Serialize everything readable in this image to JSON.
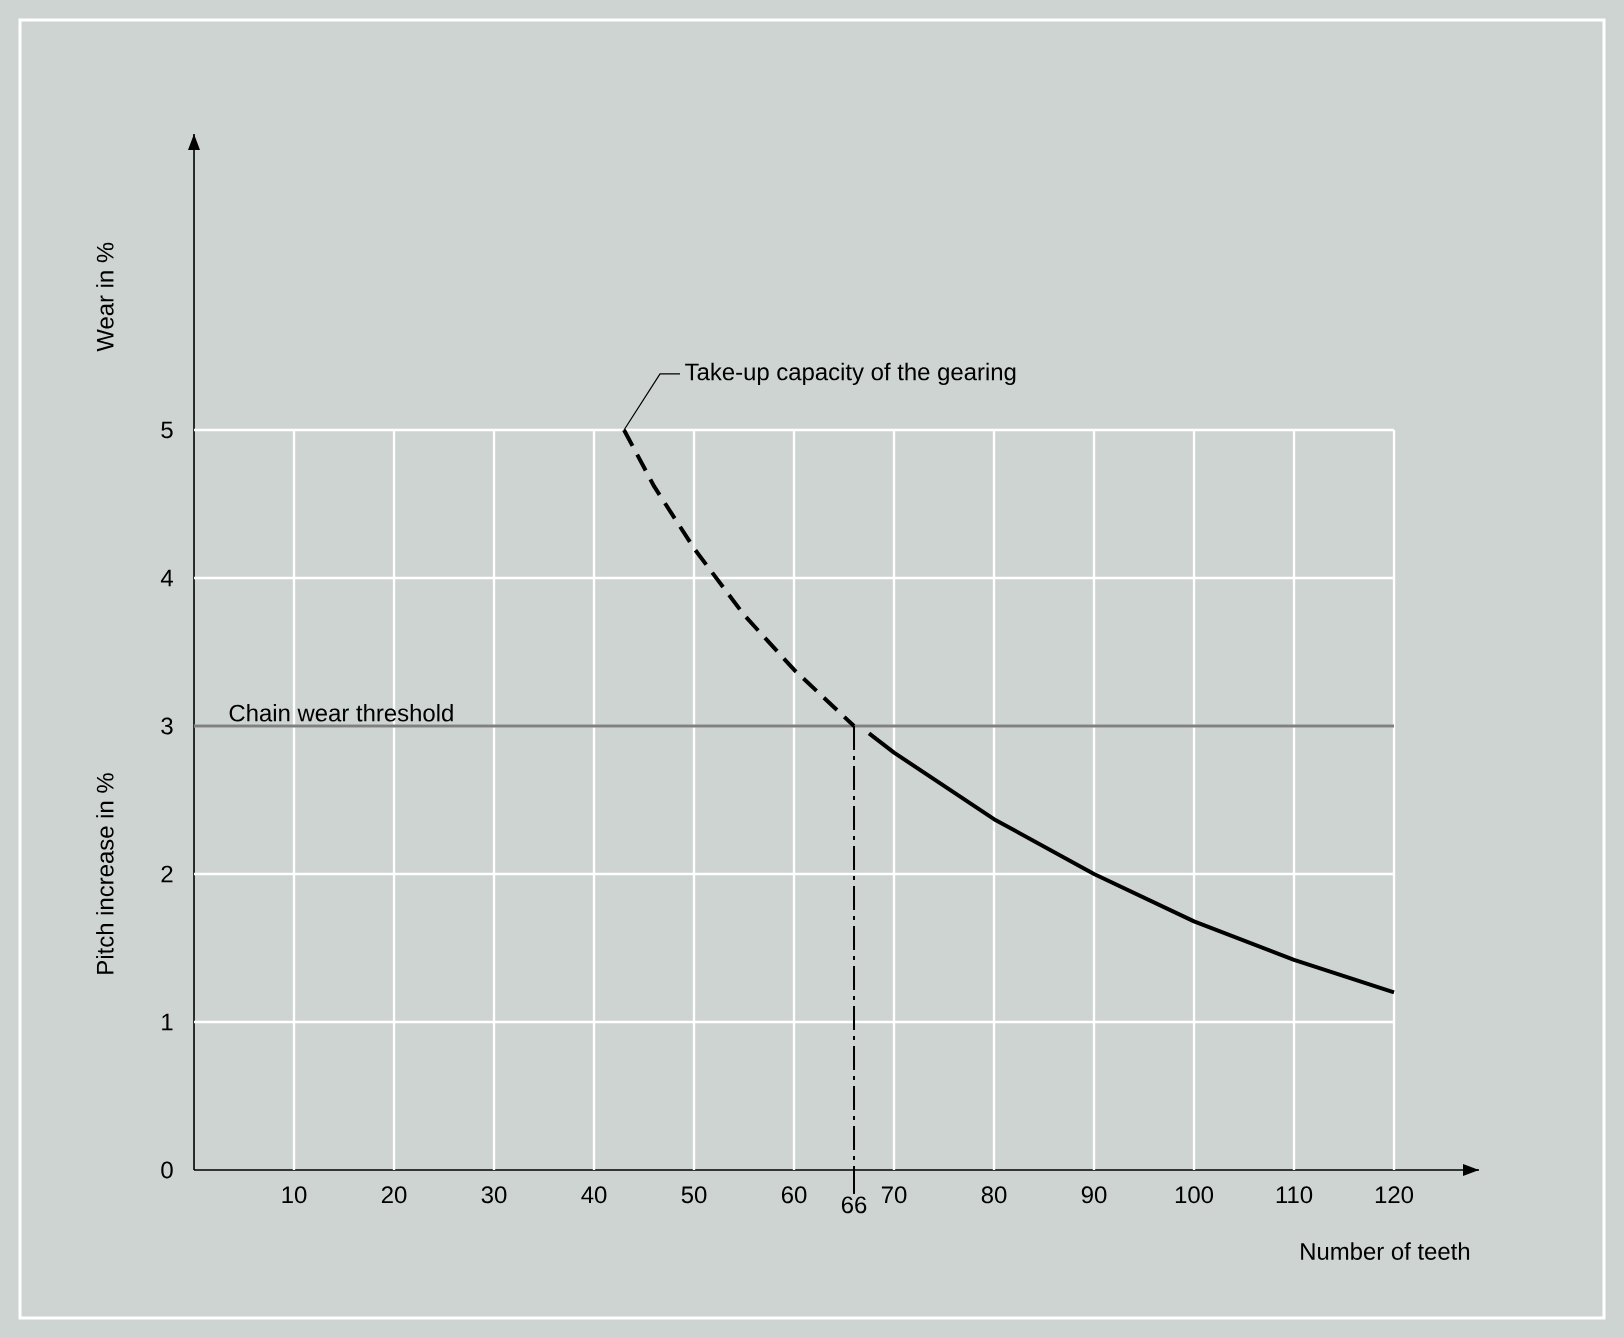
{
  "chart_data": {
    "type": "line",
    "xlabel": "Number of teeth",
    "ylabel": "Pitch increase in %",
    "xlim": [
      0,
      128.5
    ],
    "ylim": [
      0,
      7
    ],
    "xticks": [
      10,
      20,
      30,
      40,
      50,
      60,
      70,
      80,
      90,
      100,
      110,
      120
    ],
    "yticks": [
      0,
      1,
      2,
      3,
      4,
      5
    ],
    "grid": true,
    "tick_labels": "xy",
    "series": [
      {
        "color": "#000000",
        "line_style": "dashed",
        "x": [
          43,
          46,
          50,
          55,
          60,
          66
        ],
        "values": [
          5,
          4.62,
          4.2,
          3.75,
          3.38,
          3.0
        ]
      },
      {
        "color": "#000000",
        "line_style": "solid",
        "x": [
          67.5,
          70,
          80,
          90,
          100,
          110,
          120
        ],
        "values": [
          2.95,
          2.82,
          2.37,
          2.0,
          1.68,
          1.42,
          1.2
        ]
      }
    ],
    "ref_lines": [
      {
        "axis": "y",
        "value": 3,
        "label": "Chain wear threshold",
        "color": "#808080",
        "line_style": "solid"
      },
      {
        "axis": "x",
        "value": 66,
        "label": "66",
        "color": "#000000",
        "line_style": "dashdot"
      }
    ],
    "annotations": [
      "Wear in %",
      {
        "text": "Take-up capacity of the gearing",
        "x": 43,
        "y": 5
      }
    ]
  }
}
